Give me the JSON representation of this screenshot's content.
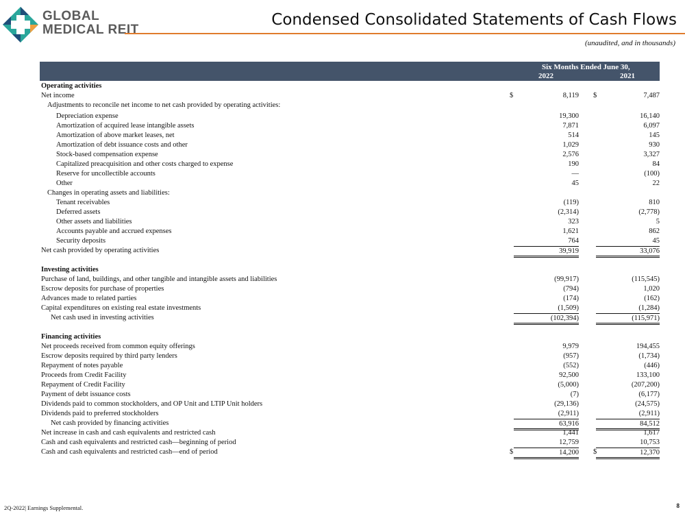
{
  "brand": {
    "line1": "GLOBAL",
    "line2": "MEDICAL REIT",
    "colors": {
      "teal": "#2aa69b",
      "navy": "#1f4e79",
      "orange": "#f0a040"
    }
  },
  "title": "Condensed Consolidated Statements of Cash Flows",
  "subtitle": "(unaudited, and in thousands)",
  "header": {
    "period": "Six Months Ended June 30,",
    "col1": "2022",
    "col2": "2021",
    "band_color": "#44546a"
  },
  "rows": [
    {
      "label": "Operating activities",
      "style": "section"
    },
    {
      "label": "Net income",
      "level": 0,
      "v2022": "8,119",
      "v2021": "7,487",
      "dollar": true
    },
    {
      "label": "Adjustments to reconcile net income to net cash provided by operating activities:",
      "level": 1
    },
    {
      "label": "Depreciation expense",
      "level": 2,
      "v2022": "19,300",
      "v2021": "16,140"
    },
    {
      "label": "Amortization of acquired lease intangible assets",
      "level": 2,
      "v2022": "7,871",
      "v2021": "6,097"
    },
    {
      "label": "Amortization of above market leases, net",
      "level": 2,
      "v2022": "514",
      "v2021": "145"
    },
    {
      "label": "Amortization of debt issuance costs and other",
      "level": 2,
      "v2022": "1,029",
      "v2021": "930"
    },
    {
      "label": "Stock-based compensation expense",
      "level": 2,
      "v2022": "2,576",
      "v2021": "3,327"
    },
    {
      "label": "Capitalized preacquisition and other costs charged to expense",
      "level": 2,
      "v2022": "190",
      "v2021": "84"
    },
    {
      "label": "Reserve for uncollectible accounts",
      "level": 2,
      "v2022": "—",
      "v2021": "(100)"
    },
    {
      "label": "Other",
      "level": 2,
      "v2022": "45",
      "v2021": "22"
    },
    {
      "label": "Changes in operating assets and liabilities:",
      "level": 1
    },
    {
      "label": "Tenant receivables",
      "level": 2,
      "v2022": "(119)",
      "v2021": "810"
    },
    {
      "label": "Deferred assets",
      "level": 2,
      "v2022": "(2,314)",
      "v2021": "(2,778)"
    },
    {
      "label": "Other assets and liabilities",
      "level": 2,
      "v2022": "323",
      "v2021": "5"
    },
    {
      "label": "Accounts payable and accrued expenses",
      "level": 2,
      "v2022": "1,621",
      "v2021": "862"
    },
    {
      "label": "Security deposits",
      "level": 2,
      "v2022": "764",
      "v2021": "45"
    },
    {
      "label": "Net cash provided by operating activities",
      "level": 0,
      "v2022": "39,919",
      "v2021": "33,076",
      "rule_above": true,
      "rule_below": true
    },
    {
      "label": "",
      "style": "blank"
    },
    {
      "label": "Investing activities",
      "style": "section"
    },
    {
      "label": "Purchase of land, buildings, and other tangible and intangible assets and liabilities",
      "level": 0,
      "v2022": "(99,917)",
      "v2021": "(115,545)"
    },
    {
      "label": "Escrow deposits for purchase of properties",
      "level": 0,
      "v2022": "(794)",
      "v2021": "1,020"
    },
    {
      "label": "Advances made to related parties",
      "level": 0,
      "v2022": "(174)",
      "v2021": "(162)"
    },
    {
      "label": "Capital expenditures on existing real estate investments",
      "level": 0,
      "v2022": "(1,509)",
      "v2021": "(1,284)"
    },
    {
      "label": "Net cash used in investing activities",
      "level": "s",
      "v2022": "(102,394)",
      "v2021": "(115,971)",
      "rule_above": true,
      "rule_below": true
    },
    {
      "label": "",
      "style": "blank"
    },
    {
      "label": "Financing activities",
      "style": "section"
    },
    {
      "label": "Net proceeds received from common equity offerings",
      "level": 0,
      "v2022": "9,979",
      "v2021": "194,455"
    },
    {
      "label": "Escrow deposits required by third party lenders",
      "level": 0,
      "v2022": "(957)",
      "v2021": "(1,734)"
    },
    {
      "label": "Repayment of notes payable",
      "level": 0,
      "v2022": "(552)",
      "v2021": "(446)"
    },
    {
      "label": "Proceeds from Credit Facility",
      "level": 0,
      "v2022": "92,500",
      "v2021": "133,100"
    },
    {
      "label": "Repayment of Credit Facility",
      "level": 0,
      "v2022": "(5,000)",
      "v2021": "(207,200)"
    },
    {
      "label": "Payment of debt issuance costs",
      "level": 0,
      "v2022": "(7)",
      "v2021": "(6,177)"
    },
    {
      "label": "Dividends paid to common stockholders, and OP Unit and LTIP Unit holders",
      "level": 0,
      "v2022": "(29,136)",
      "v2021": "(24,575)"
    },
    {
      "label": "Dividends paid to preferred stockholders",
      "level": 0,
      "v2022": "(2,911)",
      "v2021": "(2,911)"
    },
    {
      "label": "Net cash provided by financing activities",
      "level": "s",
      "v2022": "63,916",
      "v2021": "84,512",
      "rule_above": true,
      "rule_below": true
    },
    {
      "label": "Net increase in cash and cash equivalents and restricted cash",
      "level": 0,
      "v2022": "1,441",
      "v2021": "1,617"
    },
    {
      "label": "Cash and cash equivalents and restricted cash—beginning of period",
      "level": 0,
      "v2022": "12,759",
      "v2021": "10,753"
    },
    {
      "label": "Cash and cash equivalents and restricted cash—end of period",
      "level": 0,
      "v2022": "14,200",
      "v2021": "12,370",
      "dollar": true,
      "rule_above": true,
      "rule_below": true
    }
  ],
  "dollar_sign": "$",
  "footer": "2Q-2022| Earnings Supplemental.",
  "page_number": "8"
}
